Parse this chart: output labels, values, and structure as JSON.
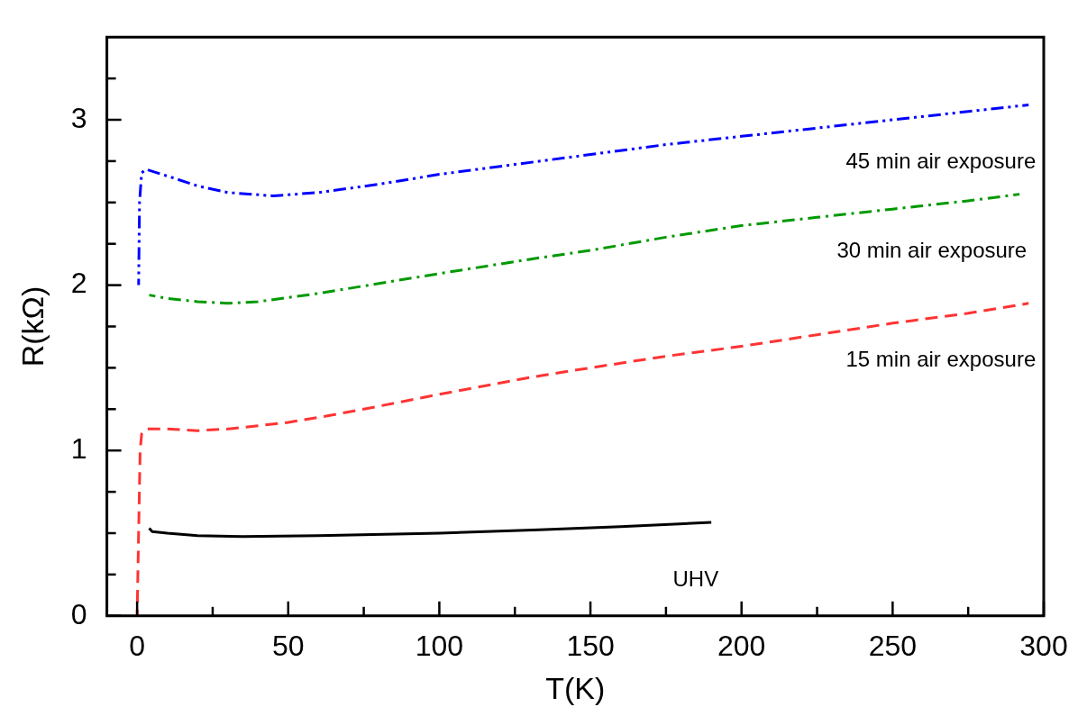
{
  "chart_data": {
    "type": "line",
    "xlabel": "T(K)",
    "ylabel": "R(kΩ)",
    "xlim": [
      -10,
      300
    ],
    "xticks": [
      0,
      {
        "value": 25,
        "label": null
      },
      50,
      {
        "value": 75,
        "label": null
      },
      100,
      {
        "value": 125,
        "label": null
      },
      150,
      {
        "value": 175,
        "label": null
      },
      200,
      {
        "value": 225,
        "label": null
      },
      250,
      {
        "value": 275,
        "label": null
      },
      300
    ],
    "ylim": [
      0,
      3.5
    ],
    "yticks": [
      0,
      {
        "value": 0.25,
        "label": null
      },
      {
        "value": 0.5,
        "label": null
      },
      {
        "value": 0.75,
        "label": null
      },
      1,
      {
        "value": 1.25,
        "label": null
      },
      {
        "value": 1.5,
        "label": null
      },
      {
        "value": 1.75,
        "label": null
      },
      2,
      {
        "value": 2.25,
        "label": null
      },
      {
        "value": 2.5,
        "label": null
      },
      {
        "value": 2.75,
        "label": null
      },
      3,
      {
        "value": 3.25,
        "label": null
      }
    ],
    "marker": "none",
    "series": [
      {
        "name": "45 min air exposure",
        "color": "#0000ff",
        "line_style": "dashdotdot",
        "x": [
          0.5,
          0.8,
          1.5,
          3,
          10,
          20,
          30,
          45,
          60,
          80,
          100,
          125,
          150,
          175,
          200,
          225,
          250,
          275,
          295
        ],
        "values": [
          2.0,
          2.5,
          2.68,
          2.7,
          2.66,
          2.6,
          2.56,
          2.54,
          2.56,
          2.61,
          2.67,
          2.73,
          2.79,
          2.85,
          2.9,
          2.95,
          3.0,
          3.05,
          3.09
        ]
      },
      {
        "name": "30 min air exposure",
        "color": "#009900",
        "line_style": "dashdot",
        "x": [
          4,
          10,
          20,
          30,
          40,
          60,
          80,
          100,
          133,
          150,
          175,
          200,
          225,
          250,
          275,
          292
        ],
        "values": [
          1.94,
          1.92,
          1.9,
          1.89,
          1.9,
          1.95,
          2.01,
          2.07,
          2.165,
          2.21,
          2.29,
          2.36,
          2.41,
          2.46,
          2.51,
          2.55
        ]
      },
      {
        "name": "15 min air exposure",
        "color": "#ff3333",
        "line_style": "dashed",
        "x": [
          0,
          0.5,
          1,
          1.5,
          3,
          10,
          20,
          30,
          40,
          50,
          60,
          75,
          100,
          131,
          150,
          175,
          200,
          225,
          250,
          275,
          295
        ],
        "values": [
          0,
          0.5,
          1.0,
          1.1,
          1.13,
          1.13,
          1.12,
          1.13,
          1.15,
          1.17,
          1.2,
          1.25,
          1.34,
          1.445,
          1.5,
          1.57,
          1.63,
          1.7,
          1.77,
          1.83,
          1.89
        ]
      },
      {
        "name": "UHV",
        "color": "#000000",
        "line_style": "solid",
        "x": [
          4,
          5,
          10,
          20,
          35,
          60,
          100,
          133,
          160,
          190
        ],
        "values": [
          0.53,
          0.51,
          0.5,
          0.485,
          0.48,
          0.485,
          0.5,
          0.52,
          0.54,
          0.565
        ]
      }
    ]
  }
}
